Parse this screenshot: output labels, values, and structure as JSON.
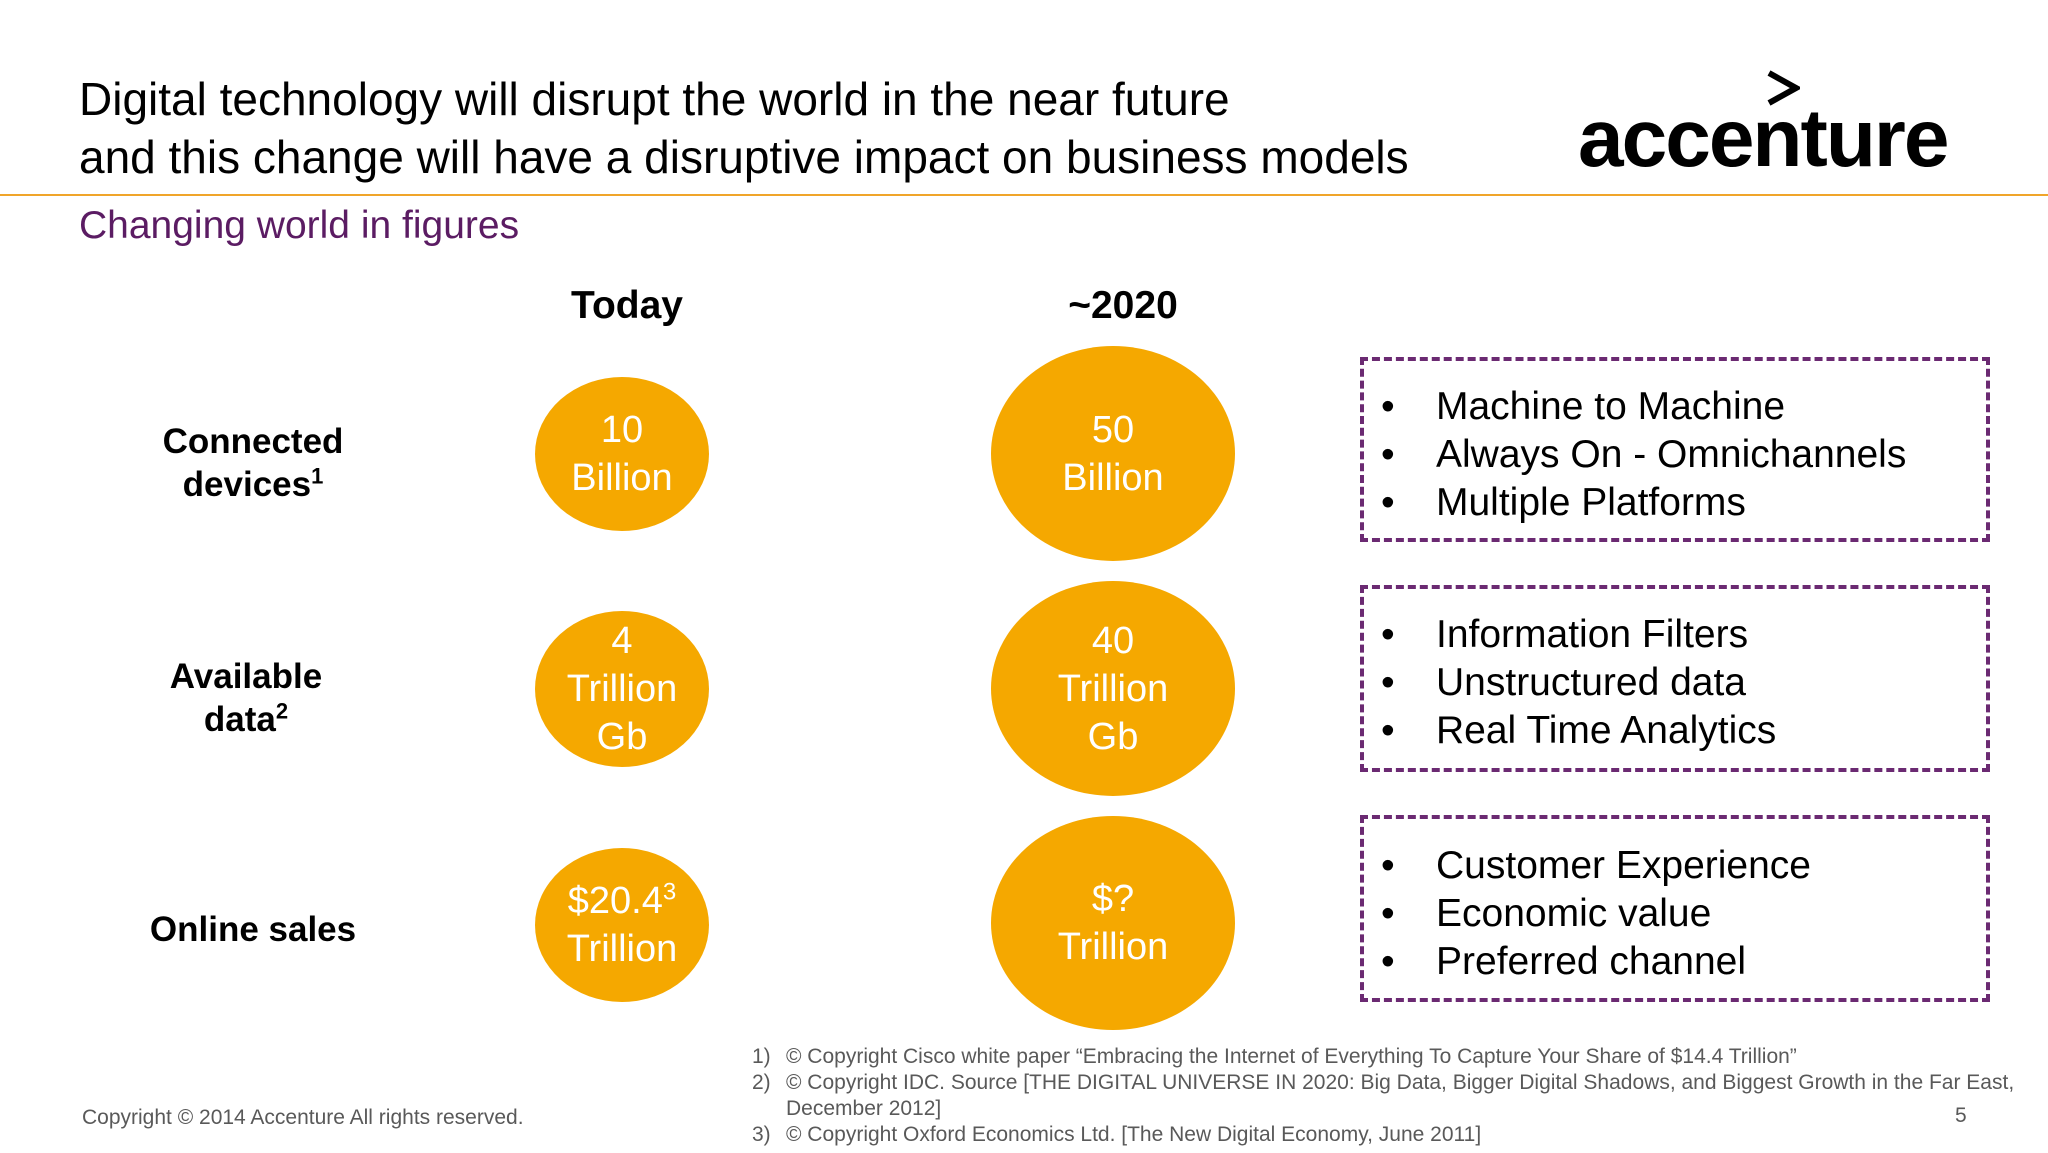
{
  "header": {
    "title_line1": "Digital technology will disrupt the world in the near future",
    "title_line2": "and this change will have a disruptive impact on business models",
    "subtitle": "Changing world in figures",
    "logo_text": "accenture",
    "accent_color": "#f0a52a",
    "subtitle_color": "#5b1c63"
  },
  "columns": {
    "today": "Today",
    "future": "~2020"
  },
  "rows": [
    {
      "label_line1": "Connected",
      "label_line2": "devices",
      "label_sup": "1",
      "today_line1": "10",
      "today_line2": "Billion",
      "future_line1": "50",
      "future_line2": "Billion",
      "bullets": [
        "Machine to Machine",
        "Always On - Omnichannels",
        "Multiple Platforms"
      ]
    },
    {
      "label_line1": "Available",
      "label_line2": "data",
      "label_sup": "2",
      "today_line1": "4",
      "today_line2": "Trillion",
      "today_line3": "Gb",
      "future_line1": "40",
      "future_line2": "Trillion",
      "future_line3": "Gb",
      "bullets": [
        "Information Filters",
        "Unstructured data",
        "Real Time Analytics"
      ]
    },
    {
      "label_line1": "Online sales",
      "today_line1": "$20.4",
      "today_sup": "3",
      "today_line2": "Trillion",
      "future_line1": "$?",
      "future_line2": "Trillion",
      "bullets": [
        "Customer Experience",
        "Economic value",
        "Preferred channel"
      ]
    }
  ],
  "bullet_char": "•",
  "circle_color": "#f5a800",
  "box_border_color": "#6b2a72",
  "footnotes": [
    {
      "num": "1)",
      "text": "© Copyright Cisco white paper “Embracing the Internet of Everything To Capture Your Share of $14.4 Trillion”"
    },
    {
      "num": "2)",
      "text": "© Copyright IDC. Source [THE DIGITAL UNIVERSE IN 2020: Big Data, Bigger Digital Shadows, and Biggest Growth in the Far East, December 2012]"
    },
    {
      "num": "3)",
      "text": "© Copyright Oxford Economics Ltd. [The New Digital Economy, June 2011]"
    }
  ],
  "footer": {
    "copyright": "Copyright © 2014 Accenture  All rights reserved.",
    "page_number": "5"
  }
}
